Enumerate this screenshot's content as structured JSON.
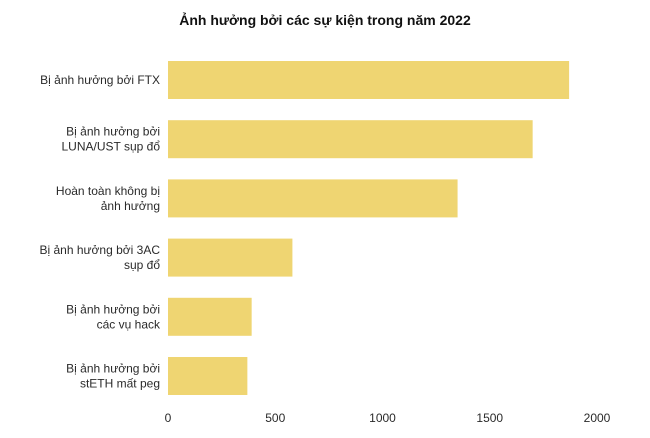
{
  "chart_data": {
    "type": "bar",
    "orientation": "horizontal",
    "title": "Ảnh hưởng bởi các sự kiện trong năm 2022",
    "xlabel": "",
    "ylabel": "",
    "categories": [
      [
        "Bị ảnh hưởng bởi FTX"
      ],
      [
        "Bị ảnh hưởng bởi",
        "LUNA/UST sụp đổ"
      ],
      [
        "Hoàn toàn không bị",
        "ảnh hưởng"
      ],
      [
        "Bị ảnh hưởng bởi 3AC",
        "sụp đổ"
      ],
      [
        "Bị ảnh hưởng bởi",
        "các vụ hack"
      ],
      [
        "Bị ảnh hưởng bởi",
        "stETH mất peg"
      ]
    ],
    "values": [
      1870,
      1700,
      1350,
      580,
      390,
      370
    ],
    "xlim": [
      0,
      2000
    ],
    "xticks": [
      "0",
      "500",
      "1000",
      "1500",
      "2000"
    ],
    "grid": false,
    "legend": "none",
    "bar_color": "#efd572"
  }
}
